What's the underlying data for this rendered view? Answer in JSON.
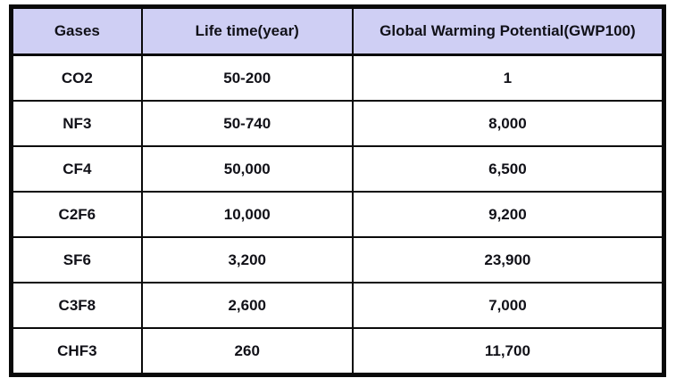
{
  "colors": {
    "header_bg": "#cfcff4",
    "border": "#0a0a0a",
    "text": "#111118",
    "row_bg": "#ffffff"
  },
  "table": {
    "columns": [
      "Gases",
      "Life time(year)",
      "Global Warming Potential(GWP100)"
    ],
    "rows": [
      [
        "CO2",
        "50-200",
        "1"
      ],
      [
        "NF3",
        "50-740",
        "8,000"
      ],
      [
        "CF4",
        "50,000",
        "6,500"
      ],
      [
        "C2F6",
        "10,000",
        "9,200"
      ],
      [
        "SF6",
        "3,200",
        "23,900"
      ],
      [
        "C3F8",
        "2,600",
        "7,000"
      ],
      [
        "CHF3",
        "260",
        "11,700"
      ]
    ]
  },
  "chart_data": {
    "type": "table",
    "title": "",
    "columns": [
      "Gases",
      "Life time(year)",
      "Global Warming Potential(GWP100)"
    ],
    "rows": [
      {
        "gas": "CO2",
        "life_time_year": "50-200",
        "gwp100": 1
      },
      {
        "gas": "NF3",
        "life_time_year": "50-740",
        "gwp100": 8000
      },
      {
        "gas": "CF4",
        "life_time_year": "50,000",
        "gwp100": 6500
      },
      {
        "gas": "C2F6",
        "life_time_year": "10,000",
        "gwp100": 9200
      },
      {
        "gas": "SF6",
        "life_time_year": "3,200",
        "gwp100": 23900
      },
      {
        "gas": "C3F8",
        "life_time_year": "2,600",
        "gwp100": 7000
      },
      {
        "gas": "CHF3",
        "life_time_year": "260",
        "gwp100": 11700
      }
    ]
  }
}
